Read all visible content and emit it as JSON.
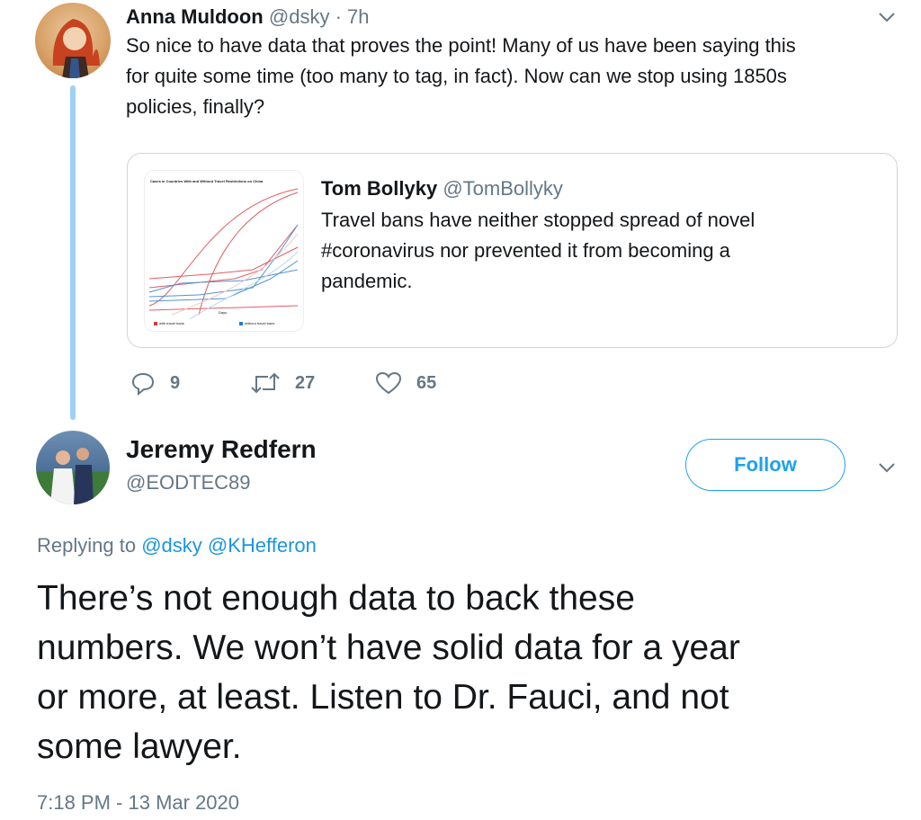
{
  "parent_tweet": {
    "author_name": "Anna Muldoon",
    "handle": "@dsky",
    "separator": " · ",
    "time": "7h",
    "lines": [
      "So nice to have data that proves the point!  Many of us have been saying this",
      "for quite some time (too many to tag, in fact).  Now can we stop using 1850s",
      "policies, finally?"
    ],
    "quoted": {
      "author_name": "Tom Bollyky",
      "handle": "@TomBollyky",
      "lines": [
        "Travel bans have neither stopped spread of novel",
        "#coronavirus nor prevented it from becoming a",
        "pandemic."
      ],
      "thumbnail": {
        "title": "Cases in Countries With and Without Travel Restrictions on China",
        "xlabel": "Days",
        "legend": [
          "with travel bans",
          "without travel bans"
        ],
        "colors": {
          "with": "#d9363e",
          "without": "#2a7abf"
        }
      }
    },
    "actions": {
      "replies": "9",
      "retweets": "27",
      "likes": "65"
    }
  },
  "main_tweet": {
    "author_name": "Jeremy Redfern",
    "handle": "@EODTEC89",
    "follow_label": "Follow",
    "replying_prefix": "Replying to ",
    "mentions": [
      "@dsky",
      "@KHefferon"
    ],
    "lines": [
      "There’s not enough data to back these",
      "numbers. We won’t have solid data for a year",
      "or more, at least. Listen to Dr. Fauci, and not",
      "some lawyer."
    ],
    "timestamp": "7:18 PM - 13 Mar 2020"
  },
  "colors": {
    "accent": "#1da1f2",
    "thread_line": "#9fd0f5",
    "secondary_text": "#657786"
  }
}
